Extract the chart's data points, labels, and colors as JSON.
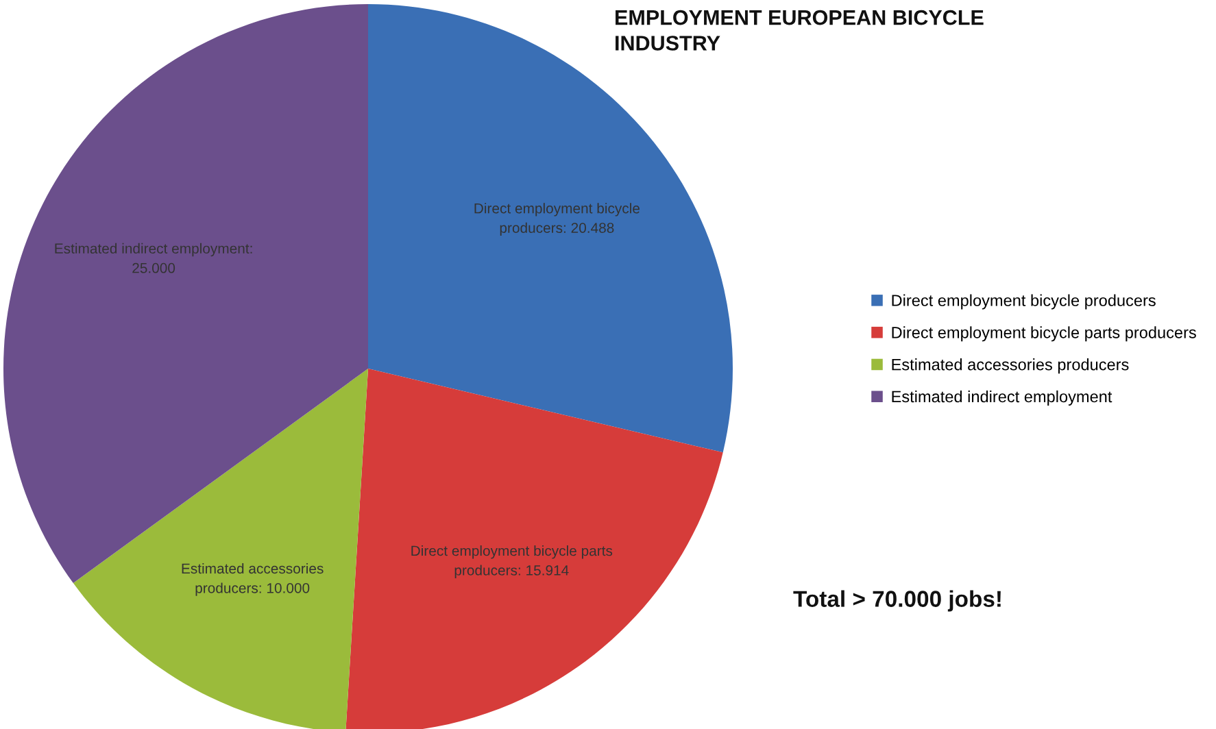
{
  "chart_data": {
    "type": "pie",
    "title": "EMPLOYMENT EUROPEAN BICYCLE INDUSTRY",
    "categories": [
      "Direct employment bicycle producers",
      "Direct employment bicycle parts producers",
      "Estimated accessories producers",
      "Estimated indirect employment"
    ],
    "values": [
      20488,
      15914,
      10000,
      25000
    ],
    "colors": [
      "#3a6fb5",
      "#d63c3a",
      "#9bbb3b",
      "#6b4f8c"
    ],
    "value_labels": [
      "Direct employment bicycle producers: 20.488",
      "Direct employment bicycle parts producers: 15.914",
      "Estimated accessories producers: 10.000",
      "Estimated indirect employment: 25.000"
    ],
    "annotations": [
      "Total > 70.000 jobs!"
    ],
    "legend": "right"
  }
}
